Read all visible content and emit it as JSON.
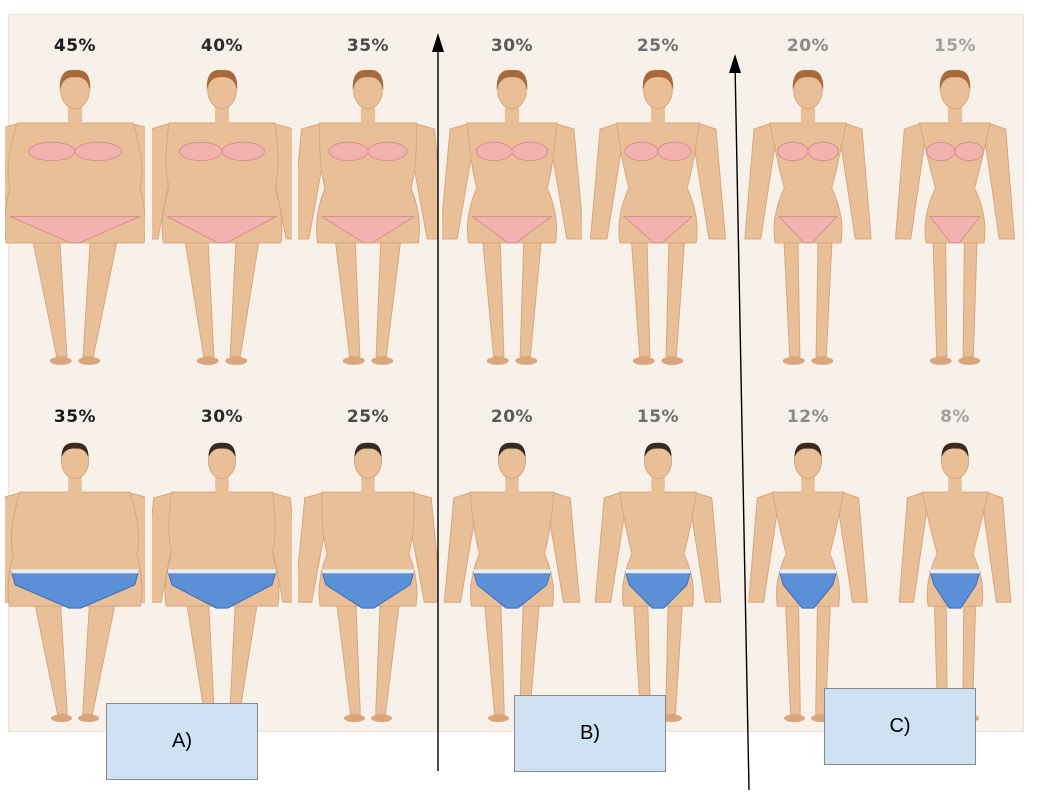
{
  "women": {
    "labels": [
      "45%",
      "40%",
      "35%",
      "30%",
      "25%",
      "20%",
      "15%"
    ],
    "colors": [
      "#1a1a1a",
      "#2b2b2b",
      "#4a4a4a",
      "#5a5a5a",
      "#6e6e6e",
      "#8a8a8a",
      "#a0a0a0"
    ],
    "builds": [
      1.0,
      0.82,
      0.66,
      0.52,
      0.4,
      0.28,
      0.18
    ]
  },
  "men": {
    "labels": [
      "35%",
      "30%",
      "25%",
      "20%",
      "15%",
      "12%",
      "8%"
    ],
    "colors": [
      "#1a1a1a",
      "#2b2b2b",
      "#4a4a4a",
      "#5a5a5a",
      "#6e6e6e",
      "#8a8a8a",
      "#a0a0a0"
    ],
    "builds": [
      1.0,
      0.82,
      0.66,
      0.5,
      0.36,
      0.26,
      0.16
    ]
  },
  "groups": {
    "a": "A)",
    "b": "B)",
    "c": "C)"
  },
  "colors": {
    "skin": "#e9bf97",
    "skin_shade": "#d9a57c",
    "hair_woman": "#a86a3a",
    "hair_man": "#3a2a20",
    "bikini": "#f1b2b0",
    "briefs": "#5b8fd6",
    "box_fill": "#cfe2f3"
  }
}
